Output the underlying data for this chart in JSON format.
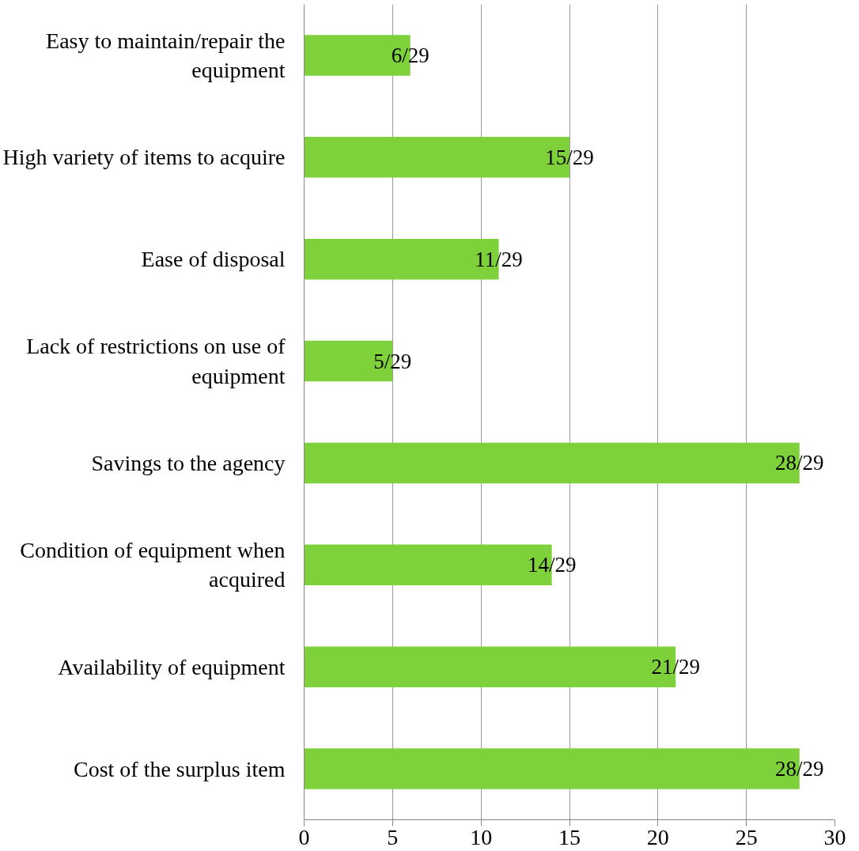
{
  "chart_data": {
    "type": "bar",
    "orientation": "horizontal",
    "categories": [
      "Easy to maintain/repair the equipment",
      "High variety of items to acquire",
      "Ease of disposal",
      "Lack of restrictions on use of equipment",
      "Savings to the agency",
      "Condition of equipment when acquired",
      "Availability of equipment",
      "Cost of the surplus item"
    ],
    "values": [
      6,
      15,
      11,
      5,
      28,
      14,
      21,
      28
    ],
    "value_labels": [
      "6/29",
      "15/29",
      "11/29",
      "5/29",
      "28/29",
      "14/29",
      "21/29",
      "28/29"
    ],
    "color": "#7ed13b",
    "xlim": [
      0,
      30
    ],
    "xticks": [
      0,
      5,
      10,
      15,
      20,
      25,
      30
    ],
    "grid": "x"
  }
}
